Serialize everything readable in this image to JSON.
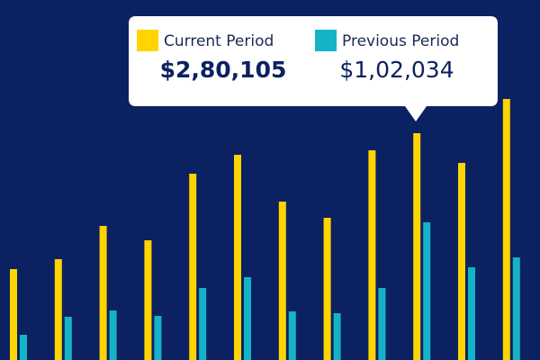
{
  "chart_data": {
    "type": "bar",
    "series": [
      {
        "name": "Current Period",
        "color": "#ffd400",
        "values": [
          101,
          112,
          149,
          133,
          207,
          228,
          176,
          158,
          233,
          252,
          219,
          290
        ]
      },
      {
        "name": "Previous Period",
        "color": "#14b3c8",
        "values": [
          28,
          48,
          55,
          49,
          80,
          92,
          54,
          52,
          80,
          153,
          103,
          114
        ]
      }
    ],
    "ylim": [
      0,
      400
    ],
    "tooltip": {
      "values": [
        "$2,80,105",
        "$1,02,034"
      ]
    }
  }
}
